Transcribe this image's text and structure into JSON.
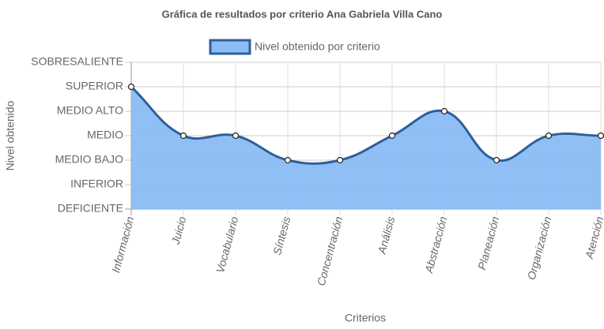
{
  "chart_data": {
    "type": "line",
    "title": "Gráfica de resultados por criterio Ana Gabriela Villa Cano",
    "x_label": "Criterios",
    "y_label": "Nivel obtenido",
    "categories": [
      "Información",
      "Juicio",
      "Vocabulario",
      "Síntesis",
      "Concentración",
      "Análisis",
      "Abstracción",
      "Planeación",
      "Organización",
      "Atención"
    ],
    "series": [
      {
        "name": "Nivel obtenido por criterio",
        "color": "#2f5f98",
        "fill": "#8abcf6",
        "values": [
          5,
          3,
          3,
          2,
          2,
          3,
          4,
          2,
          3,
          3
        ]
      }
    ],
    "ylim": [
      0,
      6
    ],
    "yticks": [
      {
        "value": 0,
        "label": "DEFICIENTE"
      },
      {
        "value": 1,
        "label": "INFERIOR"
      },
      {
        "value": 2,
        "label": "MEDIO BAJO"
      },
      {
        "value": 3,
        "label": "MEDIO"
      },
      {
        "value": 4,
        "label": "MEDIO ALTO"
      },
      {
        "value": 5,
        "label": "SUPERIOR"
      },
      {
        "value": 6,
        "label": "SOBRESALIENTE"
      }
    ],
    "grid": true,
    "legend": "top"
  }
}
